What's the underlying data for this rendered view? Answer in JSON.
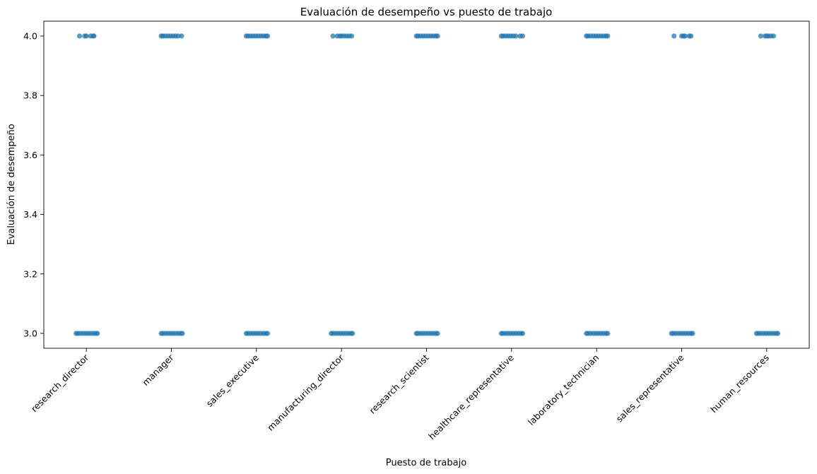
{
  "chart_data": {
    "type": "scatter",
    "title": "Evaluación de desempeño vs puesto de trabajo",
    "xlabel": "Puesto de trabajo",
    "ylabel": "Evaluación de desempeño",
    "categories": [
      "research_director",
      "manager",
      "sales_executive",
      "manufacturing_director",
      "research_scientist",
      "healthcare_representative",
      "laboratory_technician",
      "sales_representative",
      "human_resources"
    ],
    "ylim": [
      2.95,
      4.05
    ],
    "yticks": [
      "3.0",
      "3.2",
      "3.4",
      "3.6",
      "3.8",
      "4.0"
    ],
    "grid": false,
    "legend": "none",
    "point_color": "#1f77b4",
    "series": [
      {
        "category": "research_director",
        "y": 4.0,
        "jitter": [
          -0.08,
          -0.02,
          0.0,
          0.05,
          0.08,
          0.09
        ]
      },
      {
        "category": "research_director",
        "y": 3.0,
        "jitter": [
          -0.12,
          -0.1,
          -0.07,
          -0.04,
          -0.01,
          0.02,
          0.05,
          0.08,
          0.11,
          0.13
        ]
      },
      {
        "category": "manager",
        "y": 4.0,
        "jitter": [
          -0.12,
          -0.1,
          -0.07,
          -0.04,
          -0.01,
          0.02,
          0.05,
          0.08,
          0.12
        ]
      },
      {
        "category": "manager",
        "y": 3.0,
        "jitter": [
          -0.12,
          -0.1,
          -0.07,
          -0.04,
          -0.01,
          0.02,
          0.05,
          0.08,
          0.11,
          0.13
        ]
      },
      {
        "category": "sales_executive",
        "y": 4.0,
        "jitter": [
          -0.12,
          -0.1,
          -0.07,
          -0.04,
          -0.01,
          0.02,
          0.05,
          0.08,
          0.11,
          0.13
        ]
      },
      {
        "category": "sales_executive",
        "y": 3.0,
        "jitter": [
          -0.12,
          -0.1,
          -0.07,
          -0.04,
          -0.01,
          0.02,
          0.05,
          0.08,
          0.11,
          0.13
        ]
      },
      {
        "category": "manufacturing_director",
        "y": 4.0,
        "jitter": [
          -0.1,
          -0.05,
          -0.02,
          0.0,
          0.03,
          0.06,
          0.09,
          0.12
        ]
      },
      {
        "category": "manufacturing_director",
        "y": 3.0,
        "jitter": [
          -0.12,
          -0.1,
          -0.07,
          -0.04,
          -0.01,
          0.02,
          0.05,
          0.08,
          0.11,
          0.13
        ]
      },
      {
        "category": "research_scientist",
        "y": 4.0,
        "jitter": [
          -0.12,
          -0.1,
          -0.07,
          -0.04,
          -0.01,
          0.02,
          0.05,
          0.08,
          0.11,
          0.13
        ]
      },
      {
        "category": "research_scientist",
        "y": 3.0,
        "jitter": [
          -0.12,
          -0.1,
          -0.07,
          -0.04,
          -0.01,
          0.02,
          0.05,
          0.08,
          0.11,
          0.13
        ]
      },
      {
        "category": "healthcare_representative",
        "y": 4.0,
        "jitter": [
          -0.12,
          -0.1,
          -0.07,
          -0.04,
          -0.01,
          0.02,
          0.05,
          0.1,
          0.13
        ]
      },
      {
        "category": "healthcare_representative",
        "y": 3.0,
        "jitter": [
          -0.12,
          -0.1,
          -0.07,
          -0.04,
          -0.01,
          0.02,
          0.05,
          0.08,
          0.11,
          0.13
        ]
      },
      {
        "category": "laboratory_technician",
        "y": 4.0,
        "jitter": [
          -0.12,
          -0.1,
          -0.07,
          -0.04,
          -0.01,
          0.02,
          0.05,
          0.08,
          0.11,
          0.13
        ]
      },
      {
        "category": "laboratory_technician",
        "y": 3.0,
        "jitter": [
          -0.12,
          -0.1,
          -0.07,
          -0.04,
          -0.01,
          0.02,
          0.05,
          0.08,
          0.11,
          0.13
        ]
      },
      {
        "category": "sales_representative",
        "y": 4.0,
        "jitter": [
          -0.09,
          0.0,
          0.02,
          0.04,
          0.09,
          0.11
        ]
      },
      {
        "category": "sales_representative",
        "y": 3.0,
        "jitter": [
          -0.12,
          -0.1,
          -0.07,
          -0.04,
          -0.01,
          0.02,
          0.05,
          0.08,
          0.11,
          0.13
        ]
      },
      {
        "category": "human_resources",
        "y": 4.0,
        "jitter": [
          -0.07,
          -0.02,
          0.0,
          0.02,
          0.05,
          0.08
        ]
      },
      {
        "category": "human_resources",
        "y": 3.0,
        "jitter": [
          -0.12,
          -0.1,
          -0.07,
          -0.04,
          -0.01,
          0.02,
          0.05,
          0.08,
          0.11,
          0.13
        ]
      }
    ]
  }
}
